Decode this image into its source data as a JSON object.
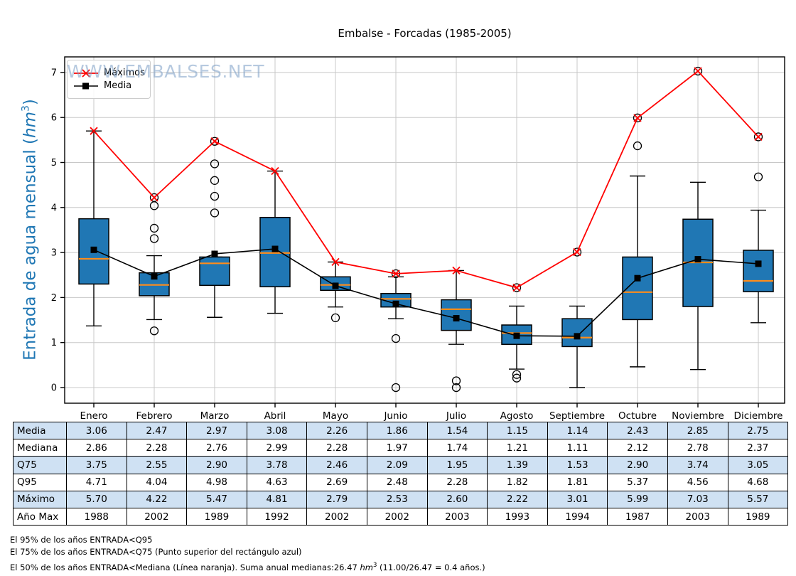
{
  "title": "Embalse - Forcadas (1985-2005)",
  "watermark": "WWW.EMBALSES.NET",
  "ylabel": {
    "text": "Entrada de agua mensual (",
    "unit": "hm",
    "sup": "3",
    "close": ")"
  },
  "legend": {
    "maximos": "Máximos",
    "media": "Media"
  },
  "colors": {
    "box_fill": "#2077b4",
    "median_line": "#ff8c1a",
    "max_line": "#ff0000",
    "media_line": "#000000",
    "grid": "#c8c8c8",
    "axis": "#000000",
    "ylabel": "#1f77b4",
    "table_shade": "#cfe1f3",
    "watermark": "rgba(122,156,196,0.55)"
  },
  "chart_data": {
    "type": "boxplot",
    "title": "Embalse - Forcadas (1985-2005)",
    "xlabel": "",
    "ylabel": "Entrada de agua mensual (hm3)",
    "ylim": [
      -0.35,
      7.35
    ],
    "yticks": [
      0,
      1,
      2,
      3,
      4,
      5,
      6,
      7
    ],
    "grid": true,
    "legend_position": "upper-left",
    "categories": [
      "Enero",
      "Febrero",
      "Marzo",
      "Abril",
      "Mayo",
      "Junio",
      "Julio",
      "Agosto",
      "Septiembre",
      "Octubre",
      "Noviembre",
      "Diciembre"
    ],
    "series": {
      "maximos": [
        5.7,
        4.22,
        5.47,
        4.81,
        2.79,
        2.53,
        2.6,
        2.22,
        3.01,
        5.99,
        7.03,
        5.57
      ],
      "media": [
        3.06,
        2.47,
        2.97,
        3.08,
        2.26,
        1.86,
        1.54,
        1.15,
        1.14,
        2.43,
        2.85,
        2.75
      ],
      "mediana": [
        2.86,
        2.28,
        2.76,
        2.99,
        2.28,
        1.97,
        1.74,
        1.21,
        1.11,
        2.12,
        2.78,
        2.37
      ],
      "q75": [
        3.75,
        2.55,
        2.9,
        3.78,
        2.46,
        2.09,
        1.95,
        1.39,
        1.53,
        2.9,
        3.74,
        3.05
      ],
      "q95": [
        4.71,
        4.04,
        4.98,
        4.63,
        2.69,
        2.48,
        2.28,
        1.82,
        1.81,
        5.37,
        4.56,
        4.68
      ],
      "q25": [
        2.3,
        2.04,
        2.27,
        2.24,
        2.16,
        1.79,
        1.27,
        0.96,
        0.91,
        1.51,
        1.8,
        2.13
      ],
      "whisker_low": [
        1.37,
        1.51,
        1.56,
        1.65,
        1.79,
        1.53,
        0.96,
        0.41,
        0.0,
        0.46,
        0.4,
        1.44
      ],
      "whisker_high": [
        5.7,
        2.93,
        2.9,
        4.81,
        2.79,
        2.46,
        2.6,
        1.81,
        1.81,
        4.7,
        4.56,
        3.94
      ],
      "outliers": [
        [],
        [
          4.22,
          4.04,
          3.54,
          3.31,
          1.26
        ],
        [
          5.47,
          4.97,
          4.6,
          4.25,
          3.88
        ],
        [],
        [
          1.55
        ],
        [
          2.53,
          1.09,
          0.0
        ],
        [
          0.15,
          0.0
        ],
        [
          2.22,
          0.29,
          0.21
        ],
        [
          3.01
        ],
        [
          5.99,
          5.37
        ],
        [
          7.03
        ],
        [
          5.57,
          4.68
        ]
      ]
    }
  },
  "table": {
    "rows": [
      {
        "label": "Media",
        "shaded": true,
        "values": [
          "3.06",
          "2.47",
          "2.97",
          "3.08",
          "2.26",
          "1.86",
          "1.54",
          "1.15",
          "1.14",
          "2.43",
          "2.85",
          "2.75"
        ]
      },
      {
        "label": "Mediana",
        "shaded": false,
        "values": [
          "2.86",
          "2.28",
          "2.76",
          "2.99",
          "2.28",
          "1.97",
          "1.74",
          "1.21",
          "1.11",
          "2.12",
          "2.78",
          "2.37"
        ]
      },
      {
        "label": "Q75",
        "shaded": true,
        "values": [
          "3.75",
          "2.55",
          "2.90",
          "3.78",
          "2.46",
          "2.09",
          "1.95",
          "1.39",
          "1.53",
          "2.90",
          "3.74",
          "3.05"
        ]
      },
      {
        "label": "Q95",
        "shaded": false,
        "values": [
          "4.71",
          "4.04",
          "4.98",
          "4.63",
          "2.69",
          "2.48",
          "2.28",
          "1.82",
          "1.81",
          "5.37",
          "4.56",
          "4.68"
        ]
      },
      {
        "label": "Máximo",
        "shaded": true,
        "values": [
          "5.70",
          "4.22",
          "5.47",
          "4.81",
          "2.79",
          "2.53",
          "2.60",
          "2.22",
          "3.01",
          "5.99",
          "7.03",
          "5.57"
        ]
      },
      {
        "label": "Año Max",
        "shaded": false,
        "values": [
          "1988",
          "2002",
          "1989",
          "1992",
          "2002",
          "2002",
          "2003",
          "1993",
          "1994",
          "1987",
          "2003",
          "1989"
        ]
      }
    ]
  },
  "footnotes": [
    {
      "text": "El 95% de los años ENTRADA<Q95"
    },
    {
      "text": "El 75% de los años ENTRADA<Q75 (Punto superior del rectángulo azul)"
    },
    {
      "before": "El 50% de los años ENTRADA<Mediana (Línea naranja). Suma anual medianas:26.47 ",
      "unit": "hm",
      "sup": "3",
      "after": " (11.00/26.47 = 0.4 años.)"
    }
  ]
}
